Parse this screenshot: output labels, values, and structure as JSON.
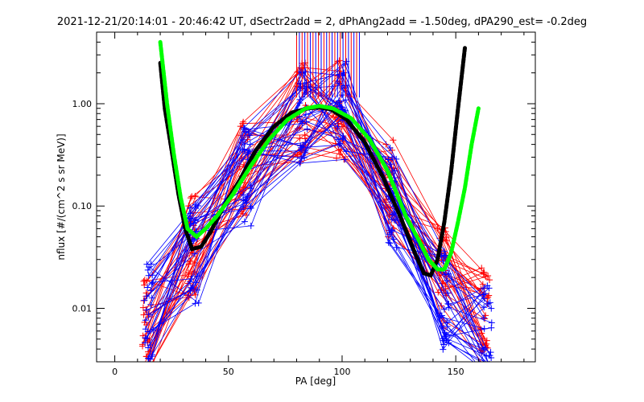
{
  "chart_data": {
    "type": "line",
    "title": "2021-12-21/20:14:01 - 20:46:42 UT, dSectr2add = 2, dPhAng2add = -1.50deg, dPA290_est=  -0.2deg",
    "xlabel": "PA [deg]",
    "ylabel": "nflux [#/(cm^2 s sr MeV)]",
    "xlim": [
      -8,
      185
    ],
    "ylim": [
      0.003,
      5
    ],
    "yscale": "log",
    "grid": false,
    "x_ticks": [
      0,
      50,
      100,
      150
    ],
    "x_tick_labels": [
      "0",
      "50",
      "100",
      "150"
    ],
    "y_ticks": [
      0.01,
      0.1,
      1.0
    ],
    "y_tick_labels": [
      "0.01",
      "0.10",
      "1.00"
    ],
    "colors": {
      "red": "#ff0000",
      "blue": "#0000ff",
      "black": "#000000",
      "green": "#00ff00"
    },
    "series": [
      {
        "color": "red",
        "style": "thin-line-plus-markers",
        "x": [
          14,
          34,
          57,
          82,
          99,
          121,
          144,
          163
        ],
        "values": [
          0.006,
          0.04,
          0.25,
          0.85,
          0.9,
          0.15,
          0.02,
          0.008
        ],
        "description_count": 32
      },
      {
        "color": "blue",
        "style": "thin-line-plus-markers",
        "x": [
          15,
          35,
          58,
          83,
          100,
          122,
          145,
          164
        ],
        "values": [
          0.01,
          0.035,
          0.2,
          0.8,
          0.85,
          0.12,
          0.012,
          0.006
        ]
      },
      {
        "color": "black",
        "style": "thick-dashed-fit",
        "x": [
          20,
          22,
          25,
          28,
          31,
          34,
          38,
          42,
          48,
          55,
          62,
          70,
          78,
          85,
          90,
          95,
          102,
          110,
          118,
          126,
          132,
          136,
          139,
          142,
          145,
          148,
          151,
          154
        ],
        "values": [
          2.5,
          0.9,
          0.35,
          0.13,
          0.06,
          0.038,
          0.04,
          0.055,
          0.1,
          0.18,
          0.35,
          0.6,
          0.82,
          0.9,
          0.92,
          0.88,
          0.7,
          0.42,
          0.19,
          0.075,
          0.035,
          0.022,
          0.021,
          0.03,
          0.07,
          0.22,
          0.9,
          3.5
        ]
      },
      {
        "color": "green",
        "style": "thick-dashed-fit",
        "x": [
          20,
          23,
          26,
          29,
          32,
          36,
          40,
          45,
          52,
          60,
          68,
          76,
          84,
          90,
          96,
          104,
          112,
          120,
          128,
          134,
          138,
          142,
          145,
          148,
          151,
          154,
          157,
          160
        ],
        "values": [
          4.0,
          1.0,
          0.32,
          0.12,
          0.06,
          0.05,
          0.06,
          0.08,
          0.13,
          0.25,
          0.45,
          0.7,
          0.9,
          0.95,
          0.9,
          0.72,
          0.45,
          0.22,
          0.08,
          0.045,
          0.03,
          0.024,
          0.024,
          0.035,
          0.07,
          0.15,
          0.4,
          0.9
        ]
      }
    ]
  }
}
